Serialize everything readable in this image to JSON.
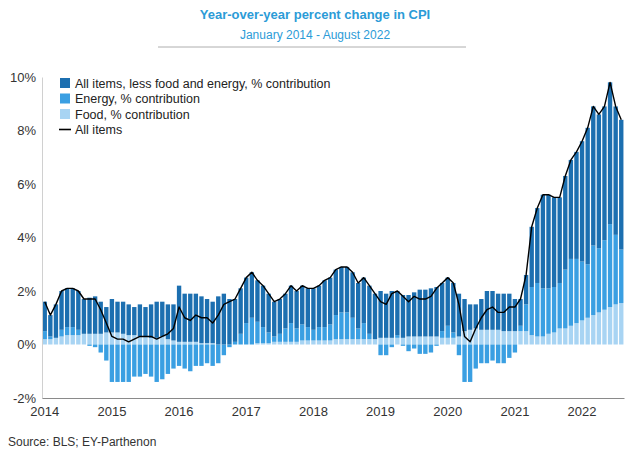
{
  "chart_data": {
    "type": "bar",
    "title": "Year-over-year percent change in CPI",
    "subtitle": "January 2014 - August 2022",
    "source": "Source: BLS; EY-Parthenon",
    "stacked": true,
    "grid": false,
    "legend": "upper left",
    "categories": [
      "2014",
      null,
      null,
      null,
      null,
      null,
      null,
      null,
      null,
      null,
      null,
      null,
      "2015",
      null,
      null,
      null,
      null,
      null,
      null,
      null,
      null,
      null,
      null,
      null,
      "2016",
      null,
      null,
      null,
      null,
      null,
      null,
      null,
      null,
      null,
      null,
      null,
      "2017",
      null,
      null,
      null,
      null,
      null,
      null,
      null,
      null,
      null,
      null,
      null,
      "2018",
      null,
      null,
      null,
      null,
      null,
      null,
      null,
      null,
      null,
      null,
      null,
      "2019",
      null,
      null,
      null,
      null,
      null,
      null,
      null,
      null,
      null,
      null,
      null,
      "2020",
      null,
      null,
      null,
      null,
      null,
      null,
      null,
      null,
      null,
      null,
      null,
      "2021",
      null,
      null,
      null,
      null,
      null,
      null,
      null,
      null,
      null,
      null,
      null,
      "2022",
      null,
      null,
      null,
      null,
      null,
      null,
      null
    ],
    "ylim": [
      -2,
      10
    ],
    "yticks": [
      {
        "value": -2,
        "label": "-2%"
      },
      {
        "value": 0,
        "label": "0%"
      },
      {
        "value": 2,
        "label": "2%"
      },
      {
        "value": 4,
        "label": "4%"
      },
      {
        "value": 6,
        "label": "6%"
      },
      {
        "value": 8,
        "label": "8%"
      },
      {
        "value": 10,
        "label": "10%"
      }
    ],
    "series": [
      {
        "name": "All items, less food and energy, % contribution",
        "type": "bar",
        "color": "#1c6fb0",
        "values": [
          1.1,
          0.8,
          1.25,
          1.45,
          1.45,
          1.45,
          1.45,
          1.3,
          1.35,
          1.4,
          1.2,
          0.95,
          1.25,
          1.15,
          1.2,
          1.15,
          1.05,
          1.2,
          1.1,
          1.25,
          1.35,
          1.3,
          1.3,
          1.35,
          2.1,
          1.8,
          1.8,
          1.8,
          1.75,
          1.65,
          1.55,
          1.8,
          1.9,
          1.7,
          1.6,
          1.7,
          1.7,
          1.7,
          1.55,
          1.55,
          1.45,
          1.3,
          1.3,
          1.3,
          1.4,
          1.4,
          1.45,
          1.45,
          1.55,
          1.55,
          1.75,
          1.75,
          1.7,
          1.7,
          1.7,
          1.7,
          1.7,
          1.7,
          1.8,
          1.7,
          1.75,
          1.65,
          1.75,
          1.65,
          1.6,
          1.55,
          1.65,
          1.75,
          1.75,
          1.8,
          1.85,
          1.8,
          1.8,
          1.85,
          1.6,
          1.2,
          0.95,
          0.9,
          1.15,
          1.45,
          1.45,
          1.35,
          1.4,
          1.4,
          1.2,
          1.0,
          1.1,
          2.25,
          2.8,
          3.5,
          3.5,
          3.35,
          3.2,
          3.5,
          3.7,
          4.0,
          4.5,
          5.1,
          5.2,
          5.0,
          5.0,
          5.3,
          4.8,
          4.85
        ]
      },
      {
        "name": "Energy, % contribution",
        "type": "bar",
        "color": "#3a9fe2",
        "values": [
          0.3,
          0.1,
          0,
          0.25,
          0.3,
          0.3,
          0.2,
          0,
          -0.05,
          -0.1,
          -0.3,
          -0.6,
          -1.4,
          -1.4,
          -1.4,
          -1.4,
          -1.2,
          -1.2,
          -1.1,
          -1.2,
          -1.4,
          -1.3,
          -1.1,
          -0.9,
          -0.8,
          -0.9,
          -1.0,
          -0.8,
          -0.8,
          -0.7,
          -0.8,
          -0.7,
          -0.4,
          -0.1,
          0.1,
          0.4,
          0.8,
          1.0,
          0.8,
          0.6,
          0.4,
          0.2,
          0.3,
          0.5,
          0.7,
          0.5,
          0.6,
          0.5,
          0.4,
          0.5,
          0.5,
          0.6,
          0.9,
          1.0,
          1.0,
          0.8,
          0.4,
          0.6,
          0.2,
          0,
          -0.4,
          -0.4,
          -0.1,
          0.1,
          -0.05,
          -0.25,
          -0.15,
          -0.35,
          -0.35,
          -0.3,
          -0.05,
          0.25,
          0.45,
          0.2,
          -0.4,
          -1.4,
          -1.4,
          -0.9,
          -0.7,
          -0.7,
          -0.6,
          -0.7,
          -0.7,
          -0.5,
          -0.3,
          0.2,
          1.0,
          1.8,
          2.0,
          1.8,
          1.7,
          1.7,
          1.7,
          2.2,
          2.5,
          2.4,
          2.2,
          2.0,
          2.6,
          2.4,
          2.6,
          3.1,
          2.6,
          2.0
        ]
      },
      {
        "name": "Food, % contribution",
        "type": "bar",
        "color": "#a8d4f3",
        "values": [
          0.2,
          0.2,
          0.25,
          0.3,
          0.35,
          0.35,
          0.35,
          0.4,
          0.4,
          0.4,
          0.4,
          0.45,
          0.45,
          0.45,
          0.4,
          0.35,
          0.35,
          0.3,
          0.3,
          0.25,
          0.25,
          0.3,
          0.2,
          0.15,
          0.1,
          0.1,
          0.1,
          0.1,
          0.05,
          0.05,
          0.05,
          0,
          0,
          0,
          0,
          0,
          0,
          0,
          0.05,
          0.05,
          0.05,
          0.1,
          0.1,
          0.1,
          0.1,
          0.1,
          0.15,
          0.15,
          0.15,
          0.15,
          0.15,
          0.15,
          0.2,
          0.2,
          0.2,
          0.2,
          0.2,
          0.2,
          0.2,
          0.2,
          0.25,
          0.25,
          0.25,
          0.25,
          0.25,
          0.3,
          0.3,
          0.3,
          0.3,
          0.3,
          0.3,
          0.25,
          0.25,
          0.25,
          0.3,
          0.5,
          0.55,
          0.6,
          0.55,
          0.55,
          0.55,
          0.55,
          0.5,
          0.5,
          0.5,
          0.5,
          0.5,
          0.35,
          0.3,
          0.3,
          0.4,
          0.45,
          0.6,
          0.6,
          0.7,
          0.8,
          0.9,
          1.0,
          1.1,
          1.2,
          1.3,
          1.4,
          1.5,
          1.55
        ]
      },
      {
        "name": "All items",
        "type": "line",
        "color": "#000000",
        "values": [
          1.6,
          1.1,
          1.5,
          2.0,
          2.1,
          2.1,
          2.0,
          1.7,
          1.7,
          1.7,
          1.3,
          0.8,
          0.3,
          0.2,
          0.2,
          0.1,
          0.2,
          0.3,
          0.3,
          0.3,
          0.2,
          0.3,
          0.4,
          0.6,
          1.4,
          1.0,
          0.9,
          1.1,
          1.0,
          1.0,
          0.8,
          1.1,
          1.5,
          1.6,
          1.7,
          2.1,
          2.5,
          2.7,
          2.4,
          2.2,
          1.9,
          1.6,
          1.7,
          1.9,
          2.2,
          2.0,
          2.2,
          2.1,
          2.1,
          2.2,
          2.4,
          2.5,
          2.8,
          2.9,
          2.9,
          2.7,
          2.3,
          2.5,
          2.2,
          1.9,
          1.6,
          1.5,
          1.9,
          2.0,
          1.8,
          1.6,
          1.8,
          1.7,
          1.7,
          1.8,
          2.1,
          2.3,
          2.5,
          2.3,
          1.5,
          0.3,
          0.1,
          0.6,
          1.0,
          1.3,
          1.4,
          1.2,
          1.2,
          1.4,
          1.4,
          1.7,
          2.6,
          4.4,
          5.1,
          5.6,
          5.6,
          5.5,
          5.5,
          6.3,
          6.9,
          7.2,
          7.6,
          8.1,
          8.9,
          8.6,
          8.9,
          9.8,
          8.9,
          8.4
        ]
      }
    ]
  }
}
